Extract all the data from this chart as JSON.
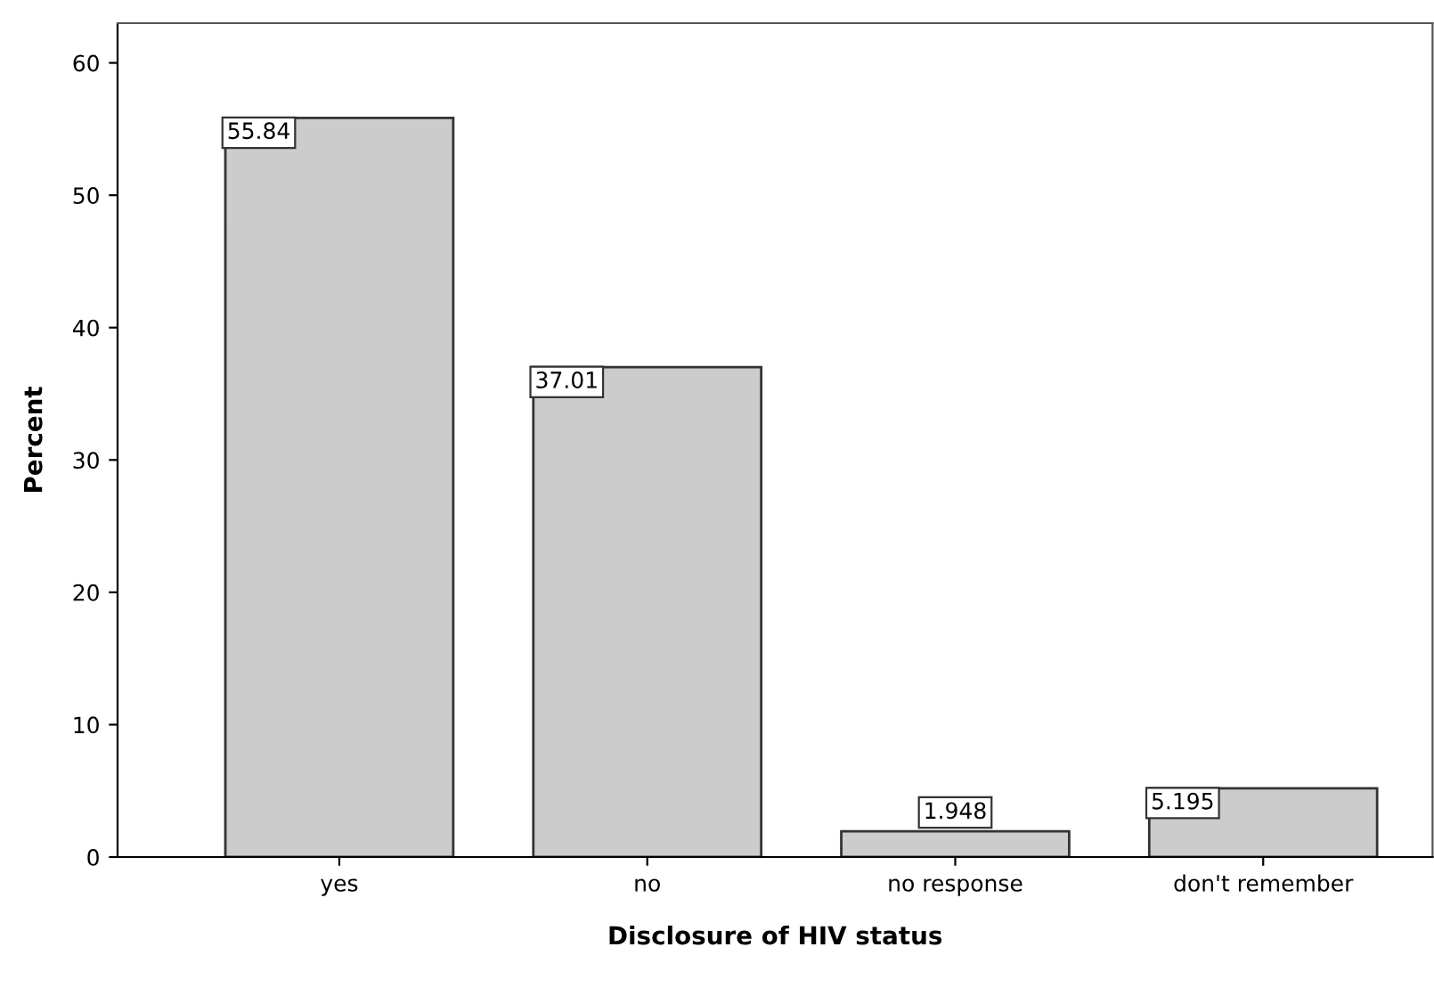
{
  "chart_data": {
    "type": "bar",
    "xlabel": "Disclosure of HIV status",
    "ylabel": "Percent",
    "categories": [
      "yes",
      "no",
      "no response",
      "don't remember"
    ],
    "values": [
      55.84,
      37.01,
      1.948,
      5.195
    ],
    "color": "#cccccc",
    "data_labels": true,
    "ylim": [
      0,
      63
    ],
    "yticks": [
      0,
      10,
      20,
      30,
      40,
      50,
      60
    ],
    "grid": false,
    "legend": false
  }
}
